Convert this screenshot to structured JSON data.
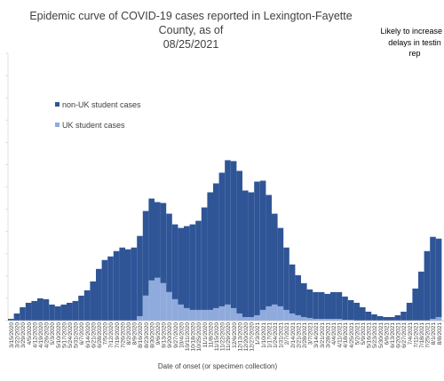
{
  "chart_data": {
    "type": "bar",
    "stacked": true,
    "title_line1": "Epidemic curve of COVID-19 cases reported in Lexington-Fayette County, as of",
    "title_line2": "08/25/2021",
    "annotation_lines": [
      "Likely to increase d",
      "delays in testin",
      "rep"
    ],
    "xlabel": "Date of onset (or specimen collection)",
    "ylabel": "",
    "legend_position": "left-inside",
    "grid": false,
    "x_tick_labels": [
      "3/15/2020",
      "3/22/2020",
      "3/29/2020",
      "4/5/2020",
      "4/12/2020",
      "4/19/2020",
      "4/26/2020",
      "5/3/2020",
      "5/10/2020",
      "5/17/2020",
      "5/24/2020",
      "5/31/2020",
      "6/7/2020",
      "6/14/2020",
      "6/21/2020",
      "6/28/2020",
      "7/5/2020",
      "7/12/2020",
      "7/19/2020",
      "7/26/2020",
      "8/2/2020",
      "8/9/2020",
      "8/16/2020",
      "8/23/2020",
      "8/30/2020",
      "9/6/2020",
      "9/13/2020",
      "9/20/2020",
      "9/27/2020",
      "10/4/2020",
      "10/11/2020",
      "10/18/2020",
      "10/25/2020",
      "11/1/2020",
      "11/8/2020",
      "11/15/2020",
      "11/22/2020",
      "11/29/2020",
      "12/6/2020",
      "12/13/2020",
      "12/20/2020",
      "12/27/2020",
      "1/3/2021",
      "1/10/2021",
      "1/17/2021",
      "1/24/2021",
      "1/31/2021",
      "2/7/2021",
      "2/14/2021",
      "2/21/2021",
      "2/28/2021",
      "3/7/2021",
      "3/14/2021",
      "3/21/2021",
      "3/28/2021",
      "4/4/2021",
      "4/11/2021",
      "4/18/2021",
      "4/25/2021",
      "5/2/2021",
      "5/9/2021",
      "5/16/2021",
      "5/23/2021",
      "5/30/2021",
      "6/6/2021",
      "6/13/2021",
      "6/20/2021",
      "6/27/2021",
      "7/4/2021",
      "7/11/2021",
      "7/18/2021",
      "7/25/2021",
      "8/1/2021",
      "8/8/2021"
    ],
    "categories_note": "weekly bins, 3/15/2020 to 8/22/2021",
    "series": [
      {
        "name": "non-UK student cases",
        "color": "#2f5597",
        "values": [
          2,
          8,
          15,
          20,
          22,
          25,
          24,
          18,
          16,
          18,
          20,
          22,
          28,
          34,
          44,
          58,
          68,
          72,
          78,
          82,
          80,
          82,
          90,
          95,
          92,
          85,
          90,
          88,
          84,
          86,
          92,
          96,
          100,
          115,
          132,
          140,
          150,
          162,
          165,
          160,
          142,
          140,
          150,
          145,
          125,
          102,
          88,
          70,
          55,
          45,
          38,
          32,
          30,
          30,
          28,
          30,
          30,
          26,
          22,
          20,
          15,
          10,
          7,
          5,
          4,
          4,
          6,
          10,
          20,
          36,
          55,
          78,
          92,
          88
        ]
      },
      {
        "name": "UK student cases",
        "color": "#8faadc",
        "values": [
          0,
          0,
          0,
          0,
          0,
          0,
          0,
          0,
          0,
          0,
          0,
          0,
          0,
          0,
          0,
          0,
          0,
          0,
          0,
          0,
          0,
          0,
          5,
          28,
          45,
          48,
          42,
          32,
          24,
          18,
          14,
          12,
          12,
          12,
          12,
          14,
          16,
          18,
          14,
          8,
          4,
          4,
          6,
          12,
          16,
          18,
          16,
          12,
          8,
          6,
          4,
          3,
          2,
          2,
          2,
          2,
          2,
          1,
          1,
          0,
          0,
          0,
          0,
          0,
          0,
          0,
          0,
          0,
          0,
          0,
          0,
          0,
          2,
          4
        ]
      }
    ],
    "ylim": [
      0,
      300
    ],
    "y_tick_step": 25
  }
}
